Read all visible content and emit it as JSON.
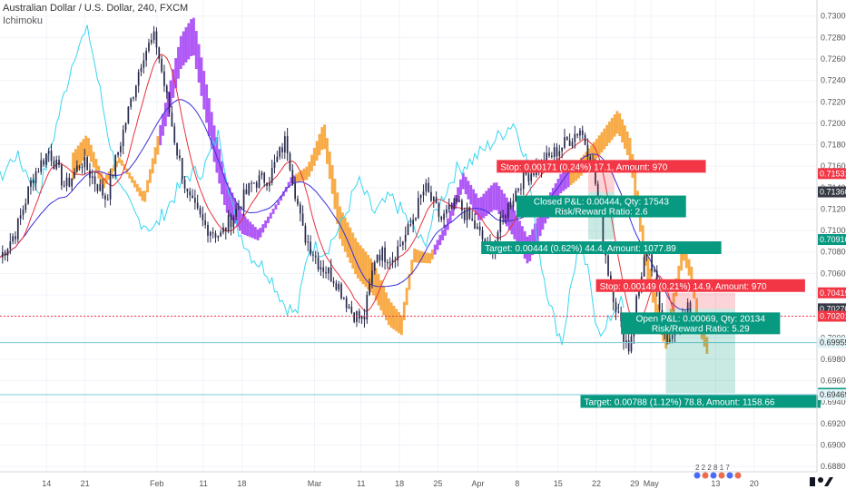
{
  "header": {
    "symbol_line": "Australian Dollar / U.S. Dollar, 240, FXCM",
    "indicator": "Ichimoku"
  },
  "chart_data": {
    "type": "candlestick",
    "instrument": "AUDUSD",
    "timeframe": "240",
    "ylim": [
      0.6875,
      0.7315
    ],
    "y_ticks": [
      0.73,
      0.728,
      0.726,
      0.724,
      0.722,
      0.72,
      0.718,
      0.716,
      0.714,
      0.712,
      0.71,
      0.708,
      0.706,
      0.704,
      0.702,
      0.7,
      0.698,
      0.696,
      0.694,
      0.692,
      0.69,
      0.688
    ],
    "y_tick_labels": [
      "0.73000",
      "0.72800",
      "0.72600",
      "0.72400",
      "0.72200",
      "0.72000",
      "0.71800",
      "0.71600",
      "0.71400",
      "0.71200",
      "0.71000",
      "0.70800",
      "0.70600",
      "0.70400",
      "0.70200",
      "0.70000",
      "0.69800",
      "0.69600",
      "0.69400",
      "0.69200",
      "0.69000",
      "0.68800"
    ],
    "x_ticks": [
      {
        "label": "14",
        "pos": 0.057
      },
      {
        "label": "21",
        "pos": 0.104
      },
      {
        "label": "Feb",
        "pos": 0.192
      },
      {
        "label": "11",
        "pos": 0.249
      },
      {
        "label": "18",
        "pos": 0.296
      },
      {
        "label": "Mar",
        "pos": 0.385
      },
      {
        "label": "11",
        "pos": 0.442
      },
      {
        "label": "18",
        "pos": 0.489
      },
      {
        "label": "25",
        "pos": 0.536
      },
      {
        "label": "Apr",
        "pos": 0.585
      },
      {
        "label": "8",
        "pos": 0.633
      },
      {
        "label": "15",
        "pos": 0.683
      },
      {
        "label": "22",
        "pos": 0.73
      },
      {
        "label": "29",
        "pos": 0.777
      },
      {
        "label": "May",
        "pos": 0.797
      },
      {
        "label": "13",
        "pos": 0.876
      },
      {
        "label": "20",
        "pos": 0.923
      }
    ],
    "price_labels": [
      {
        "text": "0.71531",
        "value": 0.71531,
        "color": "#f23645"
      },
      {
        "text": "0.71360",
        "value": 0.7136,
        "color": "#363a45"
      },
      {
        "text": "0.70916",
        "value": 0.70916,
        "color": "#089981"
      },
      {
        "text": "0.70419",
        "value": 0.70419,
        "color": "#f23645"
      },
      {
        "text": "0.70270",
        "value": 0.7027,
        "color": "#363a45"
      },
      {
        "text": "0.70201",
        "value": 0.70201,
        "color": "#f23645"
      },
      {
        "text": "0.69955",
        "value": 0.69955,
        "color": "#e0f3f7"
      },
      {
        "text": "0.69482",
        "value": 0.69482,
        "color": "#089981"
      },
      {
        "text": "0.69469",
        "value": 0.69469,
        "color": "#e0f3f7"
      }
    ],
    "horizontal_lines": [
      {
        "value": 0.70201,
        "color": "#f23645",
        "style": "dotted"
      },
      {
        "value": 0.69955,
        "color": "#7ec8d8",
        "style": "solid"
      },
      {
        "value": 0.69469,
        "color": "#7ec8d8",
        "style": "solid"
      }
    ],
    "positions": [
      {
        "name": "closed-long",
        "x_start": 0.72,
        "x_end": 0.752,
        "entry": 0.7136,
        "stop": 0.71531,
        "target": 0.70916,
        "stop_text": "Stop: 0.00171 (0.24%) 17.1, Amount: 970",
        "info_text_1": "Closed P&L: 0.00444, Qty: 17543",
        "info_text_2": "Risk/Reward Ratio: 2.6",
        "target_text": "Target: 0.00444 (0.62%) 44.4, Amount: 1077.89"
      },
      {
        "name": "open-long",
        "x_start": 0.815,
        "x_end": 0.9,
        "entry": 0.7027,
        "stop": 0.70419,
        "target": 0.69482,
        "stop_text": "Stop: 0.00149 (0.21%) 14.9, Amount: 970",
        "info_text_1": "Open P&L: 0.00069, Qty: 20134",
        "info_text_2": "Risk/Reward Ratio: 5.29",
        "target_text": "Target: 0.00788 (1.12%) 78.8, Amount: 1158.66"
      }
    ],
    "event_markers": "2 2 2 8 1 7",
    "colors": {
      "cloud_bull": "#f7a233",
      "cloud_bear": "#a646f5",
      "conversion": "#e8313a",
      "base": "#3a2fd6",
      "lagging": "#38d6ef",
      "candle": "#26284a"
    }
  }
}
